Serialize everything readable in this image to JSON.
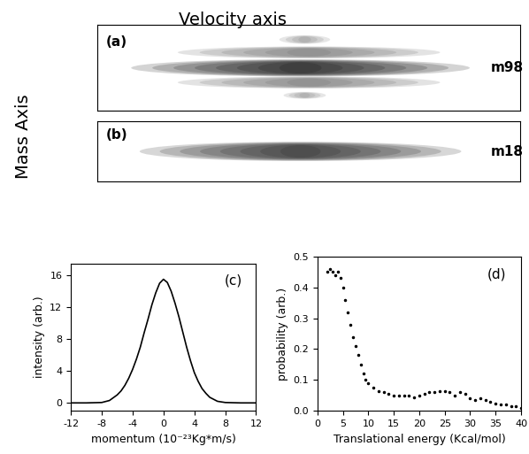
{
  "title": "Velocity axis",
  "side_label": "Mass Axis",
  "images": [
    {
      "panel": "(a)",
      "label": "m98"
    },
    {
      "panel": "(b)",
      "label": "m18"
    }
  ],
  "chart_data": [
    {
      "type": "line",
      "panel": "(c)",
      "x_label": "momentum (10⁻²³Kg*m/s)",
      "y_label": "intensity (arb.)",
      "x": [
        -12,
        -10,
        -8,
        -7,
        -6,
        -5.5,
        -5,
        -4.5,
        -4,
        -3.5,
        -3,
        -2.5,
        -2,
        -1.5,
        -1,
        -0.5,
        0,
        0.5,
        1,
        1.5,
        2,
        2.5,
        3,
        3.5,
        4,
        4.5,
        5,
        5.5,
        6,
        7,
        8,
        10,
        12
      ],
      "values": [
        0,
        0,
        0.05,
        0.3,
        1.0,
        1.5,
        2.2,
        3.1,
        4.2,
        5.5,
        7.0,
        8.8,
        10.5,
        12.3,
        13.8,
        15.0,
        15.5,
        15.1,
        14.0,
        12.5,
        10.8,
        8.9,
        7.0,
        5.3,
        3.8,
        2.7,
        1.8,
        1.2,
        0.7,
        0.2,
        0.05,
        0,
        0
      ],
      "color": "#000000",
      "line_style": "solid",
      "xlim": [
        -12,
        12
      ],
      "xticks": [
        -12,
        -8,
        -4,
        0,
        4,
        8,
        12
      ],
      "ylim": [
        -1,
        17.5
      ],
      "yticks": [
        0,
        4,
        8,
        12,
        16
      ],
      "grid": false
    },
    {
      "type": "scatter",
      "panel": "(d)",
      "x_label": "Translational energy (Kcal/mol)",
      "y_label": "probability (arb.)",
      "x": [
        2,
        2.5,
        3,
        3.5,
        4,
        4.5,
        5,
        5.5,
        6,
        6.5,
        7,
        7.5,
        8,
        8.5,
        9,
        9.5,
        10,
        11,
        12,
        13,
        14,
        15,
        16,
        17,
        18,
        19,
        20,
        21,
        22,
        23,
        24,
        25,
        26,
        27,
        28,
        29,
        30,
        31,
        32,
        33,
        34,
        35,
        36,
        37,
        38,
        39,
        40
      ],
      "values": [
        0.45,
        0.46,
        0.45,
        0.44,
        0.45,
        0.43,
        0.4,
        0.36,
        0.32,
        0.28,
        0.24,
        0.21,
        0.18,
        0.15,
        0.12,
        0.1,
        0.09,
        0.075,
        0.065,
        0.06,
        0.055,
        0.05,
        0.05,
        0.05,
        0.05,
        0.045,
        0.05,
        0.055,
        0.06,
        0.06,
        0.065,
        0.065,
        0.06,
        0.05,
        0.06,
        0.055,
        0.04,
        0.035,
        0.04,
        0.035,
        0.03,
        0.025,
        0.02,
        0.02,
        0.015,
        0.015,
        0.01
      ],
      "color": "#000000",
      "marker": ".",
      "line_style": "none",
      "xlim": [
        0,
        40
      ],
      "xticks": [
        0,
        5,
        10,
        15,
        20,
        25,
        30,
        35,
        40
      ],
      "ylim": [
        0.0,
        0.5
      ],
      "yticks": [
        0.0,
        0.1,
        0.2,
        0.3,
        0.4,
        0.5
      ],
      "grid": false
    }
  ]
}
